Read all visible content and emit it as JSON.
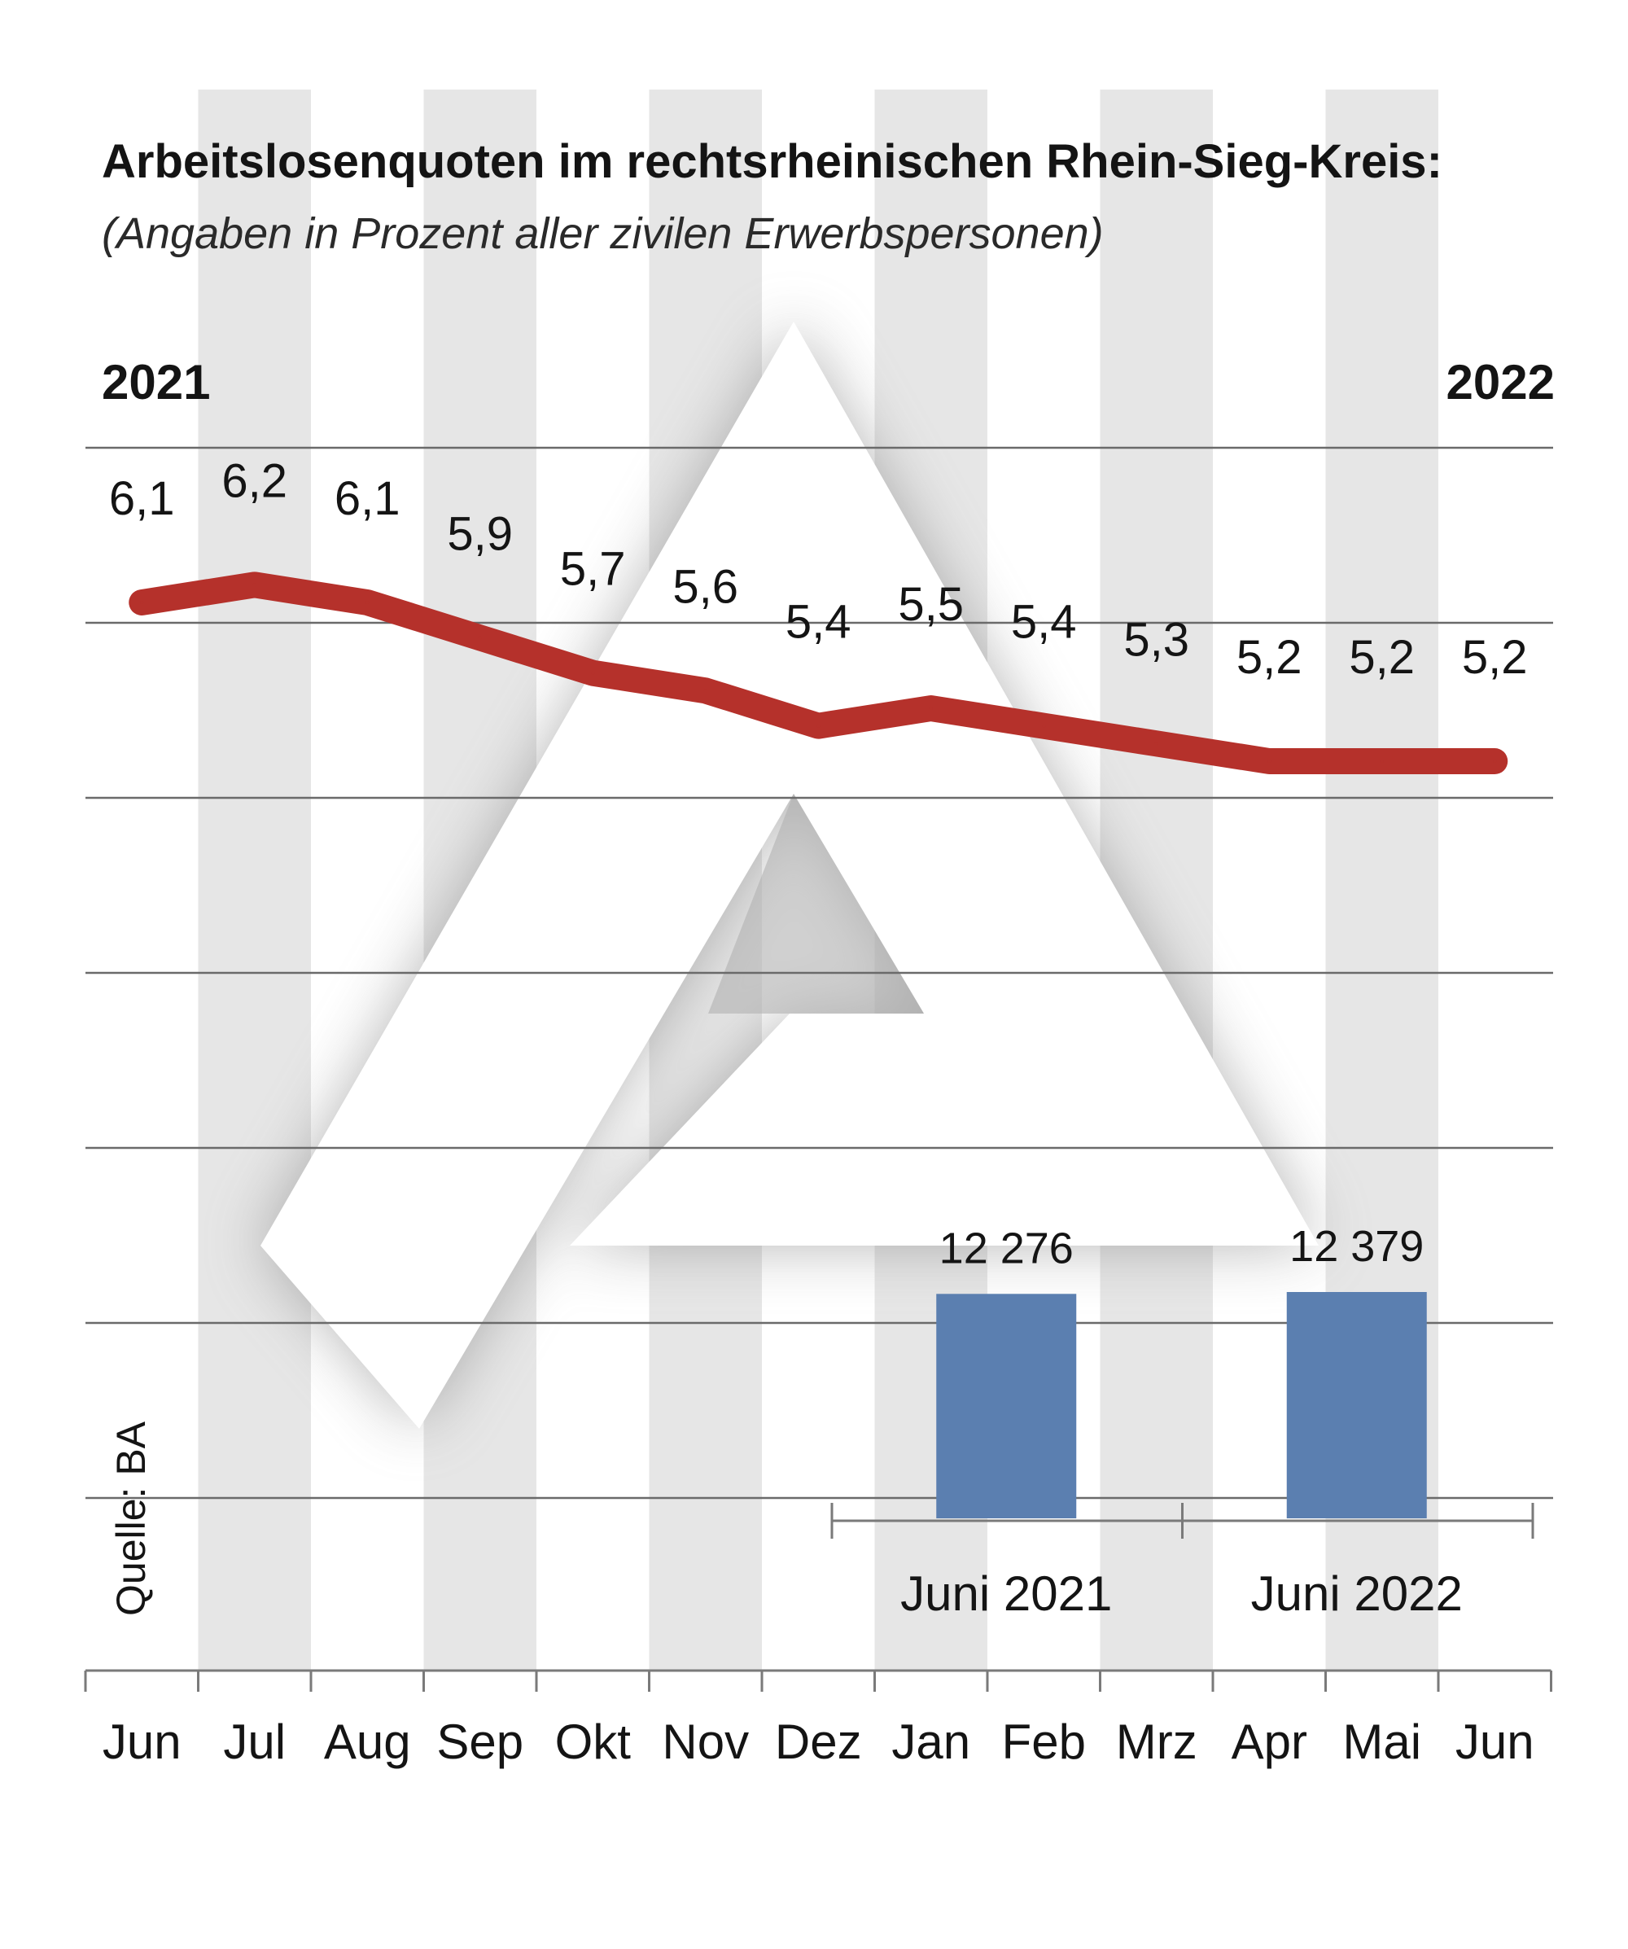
{
  "chart_data": {
    "type": "line",
    "title": "Arbeitslosenquoten im rechtsrheinischen Rhein-Sieg-Kreis:",
    "subtitle": "(Angaben in Prozent aller zivilen Erwerbspersonen)",
    "year_start": "2021",
    "year_end": "2022",
    "categories": [
      "Jun",
      "Jul",
      "Aug",
      "Sep",
      "Okt",
      "Nov",
      "Dez",
      "Jan",
      "Feb",
      "Mrz",
      "Apr",
      "Mai",
      "Jun"
    ],
    "value_labels": [
      "6,1",
      "6,2",
      "6,1",
      "5,9",
      "5,7",
      "5,6",
      "5,4",
      "5,5",
      "5,4",
      "5,3",
      "5,2",
      "5,2",
      "5,2"
    ],
    "values": [
      6.1,
      6.2,
      6.1,
      5.9,
      5.7,
      5.6,
      5.4,
      5.5,
      5.4,
      5.3,
      5.2,
      5.2,
      5.2
    ],
    "line_color": "#b5312b",
    "inset_bars": {
      "type": "bar",
      "categories": [
        "Juni 2021",
        "Juni 2022"
      ],
      "values": [
        12276,
        12379
      ],
      "value_labels": [
        "12 276",
        "12 379"
      ],
      "color": "#5b7fb0"
    },
    "source": "Quelle: BA"
  }
}
